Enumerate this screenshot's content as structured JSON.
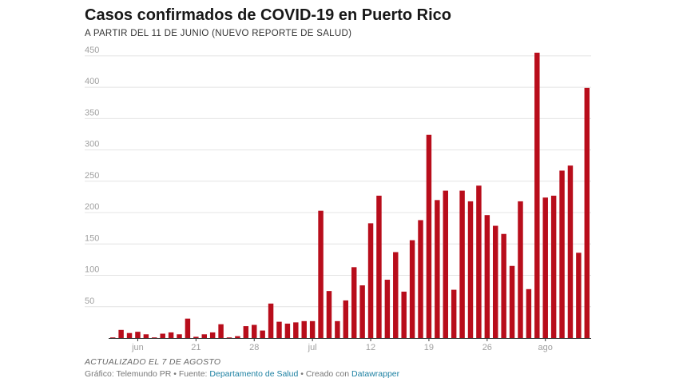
{
  "chart_data": {
    "type": "bar",
    "title": "Casos confirmados de COVID-19 en Puerto Rico",
    "subtitle": "A PARTIR DEL 11 DE JUNIO (NUEVO REPORTE DE SALUD)",
    "xlabel": "",
    "ylabel": "",
    "ylim": [
      0,
      460
    ],
    "y_ticks": [
      50,
      100,
      150,
      200,
      250,
      300,
      350,
      400,
      450
    ],
    "grid": true,
    "bar_color": "#b80d1b",
    "x_start_date": "2020-06-11",
    "x_end_date": "2020-08-07",
    "categories": [
      "2020-06-11",
      "2020-06-12",
      "2020-06-13",
      "2020-06-14",
      "2020-06-15",
      "2020-06-16",
      "2020-06-17",
      "2020-06-18",
      "2020-06-19",
      "2020-06-20",
      "2020-06-21",
      "2020-06-22",
      "2020-06-23",
      "2020-06-24",
      "2020-06-25",
      "2020-06-26",
      "2020-06-27",
      "2020-06-28",
      "2020-06-29",
      "2020-06-30",
      "2020-07-01",
      "2020-07-02",
      "2020-07-03",
      "2020-07-04",
      "2020-07-05",
      "2020-07-06",
      "2020-07-07",
      "2020-07-08",
      "2020-07-09",
      "2020-07-10",
      "2020-07-11",
      "2020-07-12",
      "2020-07-13",
      "2020-07-14",
      "2020-07-15",
      "2020-07-16",
      "2020-07-17",
      "2020-07-18",
      "2020-07-19",
      "2020-07-20",
      "2020-07-21",
      "2020-07-22",
      "2020-07-23",
      "2020-07-24",
      "2020-07-25",
      "2020-07-26",
      "2020-07-27",
      "2020-07-28",
      "2020-07-29",
      "2020-07-30",
      "2020-07-31",
      "2020-08-01",
      "2020-08-02",
      "2020-08-03",
      "2020-08-04",
      "2020-08-05",
      "2020-08-06",
      "2020-08-07"
    ],
    "values": [
      1,
      13,
      8,
      10,
      6,
      1,
      7,
      9,
      6,
      31,
      2,
      6,
      9,
      22,
      1,
      3,
      19,
      21,
      12,
      55,
      26,
      23,
      25,
      27,
      27,
      203,
      75,
      27,
      60,
      113,
      84,
      183,
      227,
      93,
      137,
      74,
      156,
      188,
      324,
      220,
      235,
      77,
      235,
      218,
      243,
      196,
      179,
      166,
      115,
      218,
      78,
      455,
      224,
      227,
      267,
      275,
      136,
      399
    ],
    "x_ticks": [
      {
        "label": "jun",
        "date": "2020-06-14"
      },
      {
        "label": "21",
        "date": "2020-06-21"
      },
      {
        "label": "28",
        "date": "2020-06-28"
      },
      {
        "label": "jul",
        "date": "2020-07-05"
      },
      {
        "label": "12",
        "date": "2020-07-12"
      },
      {
        "label": "19",
        "date": "2020-07-19"
      },
      {
        "label": "26",
        "date": "2020-07-26"
      },
      {
        "label": "ago",
        "date": "2020-08-02"
      }
    ]
  },
  "footer": {
    "notes": "ACTUALIZADO EL 7 DE AGOSTO",
    "byline_prefix": "Gráfico: Telemundo PR • Fuente: ",
    "source_link": "Departamento de Salud",
    "byline_mid": " • Creado con ",
    "tool_link": "Datawrapper"
  },
  "colors": {
    "bar": "#b80d1b",
    "grid": "#e4e4e4",
    "axis_text": "#a0a0a0",
    "link": "#1d81a2"
  }
}
